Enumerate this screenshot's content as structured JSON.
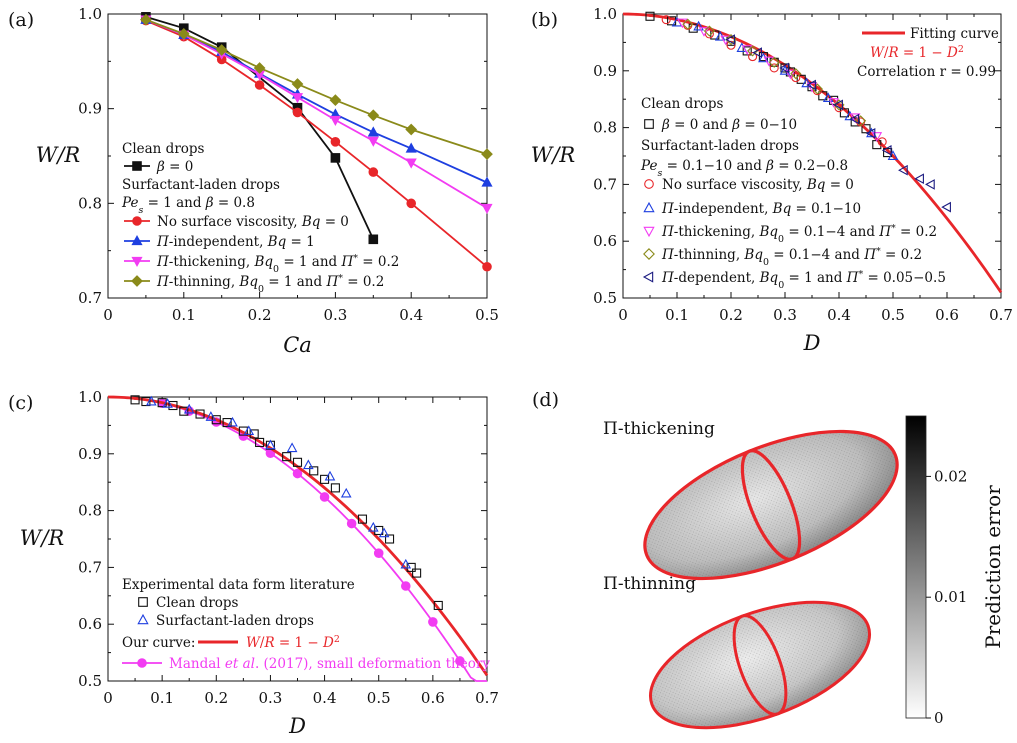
{
  "colors": {
    "black": "#111111",
    "red": "#e8262a",
    "blue": "#1e3fe0",
    "magenta": "#f23cf2",
    "olive": "#8a8a1a",
    "navy": "#1a1a80",
    "curve": "#e8262a",
    "mandal": "#f23cf2"
  },
  "chart_data": [
    {
      "id": "a",
      "type": "line",
      "panel_label": "(a)",
      "xlabel": "Ca",
      "ylabel": "W/R",
      "xlim": [
        0,
        0.5
      ],
      "ylim": [
        0.7,
        1.0
      ],
      "xticks": [
        "0",
        "0.1",
        "0.2",
        "0.3",
        "0.4",
        "0.5"
      ],
      "yticks": [
        "0.7",
        "0.8",
        "0.9",
        "1.0"
      ],
      "xtick_values": [
        0,
        0.1,
        0.2,
        0.3,
        0.4,
        0.5
      ],
      "ytick_values": [
        0.7,
        0.8,
        0.9,
        1.0
      ],
      "series": [
        {
          "name": "β = 0",
          "color": "#111111",
          "marker": "square",
          "x": [
            0.05,
            0.1,
            0.15,
            0.25,
            0.3,
            0.35
          ],
          "y": [
            0.997,
            0.985,
            0.965,
            0.901,
            0.848,
            0.762
          ]
        },
        {
          "name": "No surface viscosity, Bq = 0",
          "color": "#e8262a",
          "marker": "circle",
          "x": [
            0.05,
            0.1,
            0.15,
            0.2,
            0.25,
            0.3,
            0.35,
            0.4,
            0.5
          ],
          "y": [
            0.993,
            0.976,
            0.952,
            0.925,
            0.896,
            0.865,
            0.833,
            0.8,
            0.733
          ]
        },
        {
          "name": "Π-independent, Bq = 1",
          "color": "#1e3fe0",
          "marker": "triangle-up",
          "x": [
            0.05,
            0.1,
            0.15,
            0.2,
            0.25,
            0.3,
            0.35,
            0.4,
            0.5
          ],
          "y": [
            0.994,
            0.978,
            0.96,
            0.937,
            0.915,
            0.894,
            0.875,
            0.858,
            0.822
          ]
        },
        {
          "name": "Π-thickening, Bq₀ = 1 and Π*c = 0.2",
          "color": "#f23cf2",
          "marker": "triangle-down",
          "x": [
            0.05,
            0.1,
            0.15,
            0.2,
            0.25,
            0.3,
            0.35,
            0.4,
            0.5
          ],
          "y": [
            0.994,
            0.978,
            0.958,
            0.936,
            0.912,
            0.888,
            0.866,
            0.843,
            0.795
          ]
        },
        {
          "name": "Π-thinning, Bq₀ = 1 and Π*c = 0.2",
          "color": "#8a8a1a",
          "marker": "diamond",
          "x": [
            0.05,
            0.1,
            0.15,
            0.2,
            0.25,
            0.3,
            0.35,
            0.4,
            0.5
          ],
          "y": [
            0.994,
            0.979,
            0.962,
            0.943,
            0.926,
            0.909,
            0.893,
            0.878,
            0.852
          ]
        }
      ],
      "legend": {
        "headers": [
          "Clean drops",
          "Surfactant-laden drops",
          "Pe_s = 1 and β = 0.8"
        ],
        "placement": "lower-left"
      }
    },
    {
      "id": "b",
      "type": "scatter",
      "panel_label": "(b)",
      "xlabel": "D",
      "ylabel": "W/R",
      "xlim": [
        0,
        0.7
      ],
      "ylim": [
        0.5,
        1.0
      ],
      "xticks": [
        "0",
        "0.1",
        "0.2",
        "0.3",
        "0.4",
        "0.5",
        "0.6",
        "0.7"
      ],
      "yticks": [
        "0.5",
        "0.6",
        "0.7",
        "0.8",
        "0.9",
        "1.0"
      ],
      "xtick_values": [
        0,
        0.1,
        0.2,
        0.3,
        0.4,
        0.5,
        0.6,
        0.7
      ],
      "ytick_values": [
        0.5,
        0.6,
        0.7,
        0.8,
        0.9,
        1.0
      ],
      "fit_curve": {
        "name": "Fitting curve",
        "equation": "W/R = 1 − D²",
        "correlation": "Correlation r = 0.99",
        "color": "#e8262a"
      },
      "series": [
        {
          "name": "β = 0 and β = 0−10",
          "color": "#111111",
          "marker": "open-square",
          "x": [
            0.05,
            0.09,
            0.13,
            0.17,
            0.2,
            0.23,
            0.26,
            0.28,
            0.3,
            0.31,
            0.33,
            0.35,
            0.37,
            0.39,
            0.41,
            0.43,
            0.45,
            0.47,
            0.49
          ],
          "y": [
            0.996,
            0.988,
            0.975,
            0.963,
            0.952,
            0.935,
            0.925,
            0.915,
            0.905,
            0.898,
            0.885,
            0.872,
            0.856,
            0.848,
            0.826,
            0.81,
            0.798,
            0.77,
            0.756
          ]
        },
        {
          "name": "No surface viscosity, Bq = 0",
          "color": "#e8262a",
          "marker": "open-circle",
          "x": [
            0.08,
            0.12,
            0.16,
            0.2,
            0.24,
            0.28,
            0.32,
            0.36,
            0.4,
            0.44,
            0.48
          ],
          "y": [
            0.99,
            0.98,
            0.965,
            0.945,
            0.925,
            0.905,
            0.888,
            0.865,
            0.835,
            0.81,
            0.775
          ]
        },
        {
          "name": "Π-independent, Bq = 0.1−10",
          "color": "#1e3fe0",
          "marker": "open-triangle-up",
          "x": [
            0.1,
            0.14,
            0.18,
            0.22,
            0.26,
            0.3,
            0.34,
            0.38,
            0.42,
            0.46,
            0.5
          ],
          "y": [
            0.985,
            0.978,
            0.96,
            0.94,
            0.922,
            0.9,
            0.878,
            0.852,
            0.82,
            0.79,
            0.75
          ]
        },
        {
          "name": "Π-thickening, Bq₀ = 0.1−4 and Π*c = 0.2",
          "color": "#f23cf2",
          "marker": "open-triangle-down",
          "x": [
            0.11,
            0.15,
            0.19,
            0.23,
            0.27,
            0.31,
            0.35,
            0.39,
            0.43,
            0.47
          ],
          "y": [
            0.985,
            0.97,
            0.955,
            0.938,
            0.918,
            0.895,
            0.872,
            0.845,
            0.818,
            0.785
          ]
        },
        {
          "name": "Π-thinning, Bq₀ = 0.1−4 and Π*c = 0.2",
          "color": "#8a8a1a",
          "marker": "open-diamond",
          "x": [
            0.12,
            0.16,
            0.2,
            0.24,
            0.28,
            0.32,
            0.36,
            0.4,
            0.44
          ],
          "y": [
            0.982,
            0.97,
            0.955,
            0.935,
            0.915,
            0.895,
            0.868,
            0.84,
            0.812
          ]
        },
        {
          "name": "Π-dependent, Bq₀ = 1 and Π*c = 0.05−0.5",
          "color": "#1a1a80",
          "marker": "open-triangle-left",
          "x": [
            0.2,
            0.25,
            0.3,
            0.35,
            0.4,
            0.43,
            0.46,
            0.49,
            0.52,
            0.55,
            0.57,
            0.6
          ],
          "y": [
            0.955,
            0.932,
            0.905,
            0.875,
            0.84,
            0.815,
            0.79,
            0.76,
            0.725,
            0.71,
            0.7,
            0.66
          ]
        }
      ],
      "legend": {
        "headers": [
          "Clean drops",
          "Surfactant-laden drops",
          "Pe_s = 0.1−10 and β = 0.2−0.8"
        ],
        "placement": "lower-left"
      }
    },
    {
      "id": "c",
      "type": "scatter",
      "panel_label": "(c)",
      "xlabel": "D",
      "ylabel": "W/R",
      "xlim": [
        0,
        0.7
      ],
      "ylim": [
        0.5,
        1.0
      ],
      "xticks": [
        "0",
        "0.1",
        "0.2",
        "0.3",
        "0.4",
        "0.5",
        "0.6",
        "0.7"
      ],
      "yticks": [
        "0.5",
        "0.6",
        "0.7",
        "0.8",
        "0.9",
        "1.0"
      ],
      "xtick_values": [
        0,
        0.1,
        0.2,
        0.3,
        0.4,
        0.5,
        0.6,
        0.7
      ],
      "ytick_values": [
        0.5,
        0.6,
        0.7,
        0.8,
        0.9,
        1.0
      ],
      "fit_curve": {
        "label": "Our curve:",
        "equation": "W/R = 1 − D²",
        "color": "#e8262a"
      },
      "mandal": {
        "name": "Mandal et al. (2017), small deformation theory",
        "color": "#f23cf2",
        "x": [
          0,
          0.05,
          0.1,
          0.15,
          0.2,
          0.25,
          0.3,
          0.35,
          0.4,
          0.45,
          0.5,
          0.55,
          0.6,
          0.65,
          0.7
        ],
        "y": [
          1.0,
          0.994,
          0.977,
          0.955,
          0.925,
          0.89,
          0.85,
          0.805,
          0.758,
          0.71,
          0.655,
          0.6,
          0.545,
          0.5,
          0.5
        ]
      },
      "series": [
        {
          "name": "Clean drops",
          "color": "#111111",
          "marker": "open-square",
          "x": [
            0.05,
            0.07,
            0.1,
            0.12,
            0.14,
            0.17,
            0.2,
            0.22,
            0.25,
            0.27,
            0.28,
            0.3,
            0.33,
            0.35,
            0.38,
            0.4,
            0.42,
            0.47,
            0.5,
            0.52,
            0.56,
            0.57,
            0.61
          ],
          "y": [
            0.995,
            0.992,
            0.99,
            0.985,
            0.975,
            0.97,
            0.96,
            0.955,
            0.94,
            0.935,
            0.92,
            0.915,
            0.895,
            0.885,
            0.87,
            0.855,
            0.84,
            0.785,
            0.765,
            0.75,
            0.7,
            0.69,
            0.633
          ]
        },
        {
          "name": "Surfactant-laden drops",
          "color": "#1e3fe0",
          "marker": "open-triangle-up",
          "x": [
            0.08,
            0.11,
            0.15,
            0.19,
            0.23,
            0.26,
            0.3,
            0.34,
            0.37,
            0.41,
            0.44,
            0.49,
            0.51,
            0.55
          ],
          "y": [
            0.992,
            0.988,
            0.978,
            0.965,
            0.955,
            0.94,
            0.915,
            0.91,
            0.88,
            0.86,
            0.83,
            0.77,
            0.76,
            0.705
          ]
        }
      ],
      "legend": {
        "headers": [
          "Experimental data form literature"
        ],
        "placement": "lower-left"
      }
    },
    {
      "id": "d",
      "type": "other",
      "panel_label": "(d)",
      "labels": [
        "Π-thickening",
        "Π-thinning"
      ],
      "colorbar": {
        "label": "Prediction error",
        "ticks": [
          "0",
          "0.01",
          "0.02"
        ],
        "range": [
          0,
          0.025
        ]
      }
    }
  ]
}
